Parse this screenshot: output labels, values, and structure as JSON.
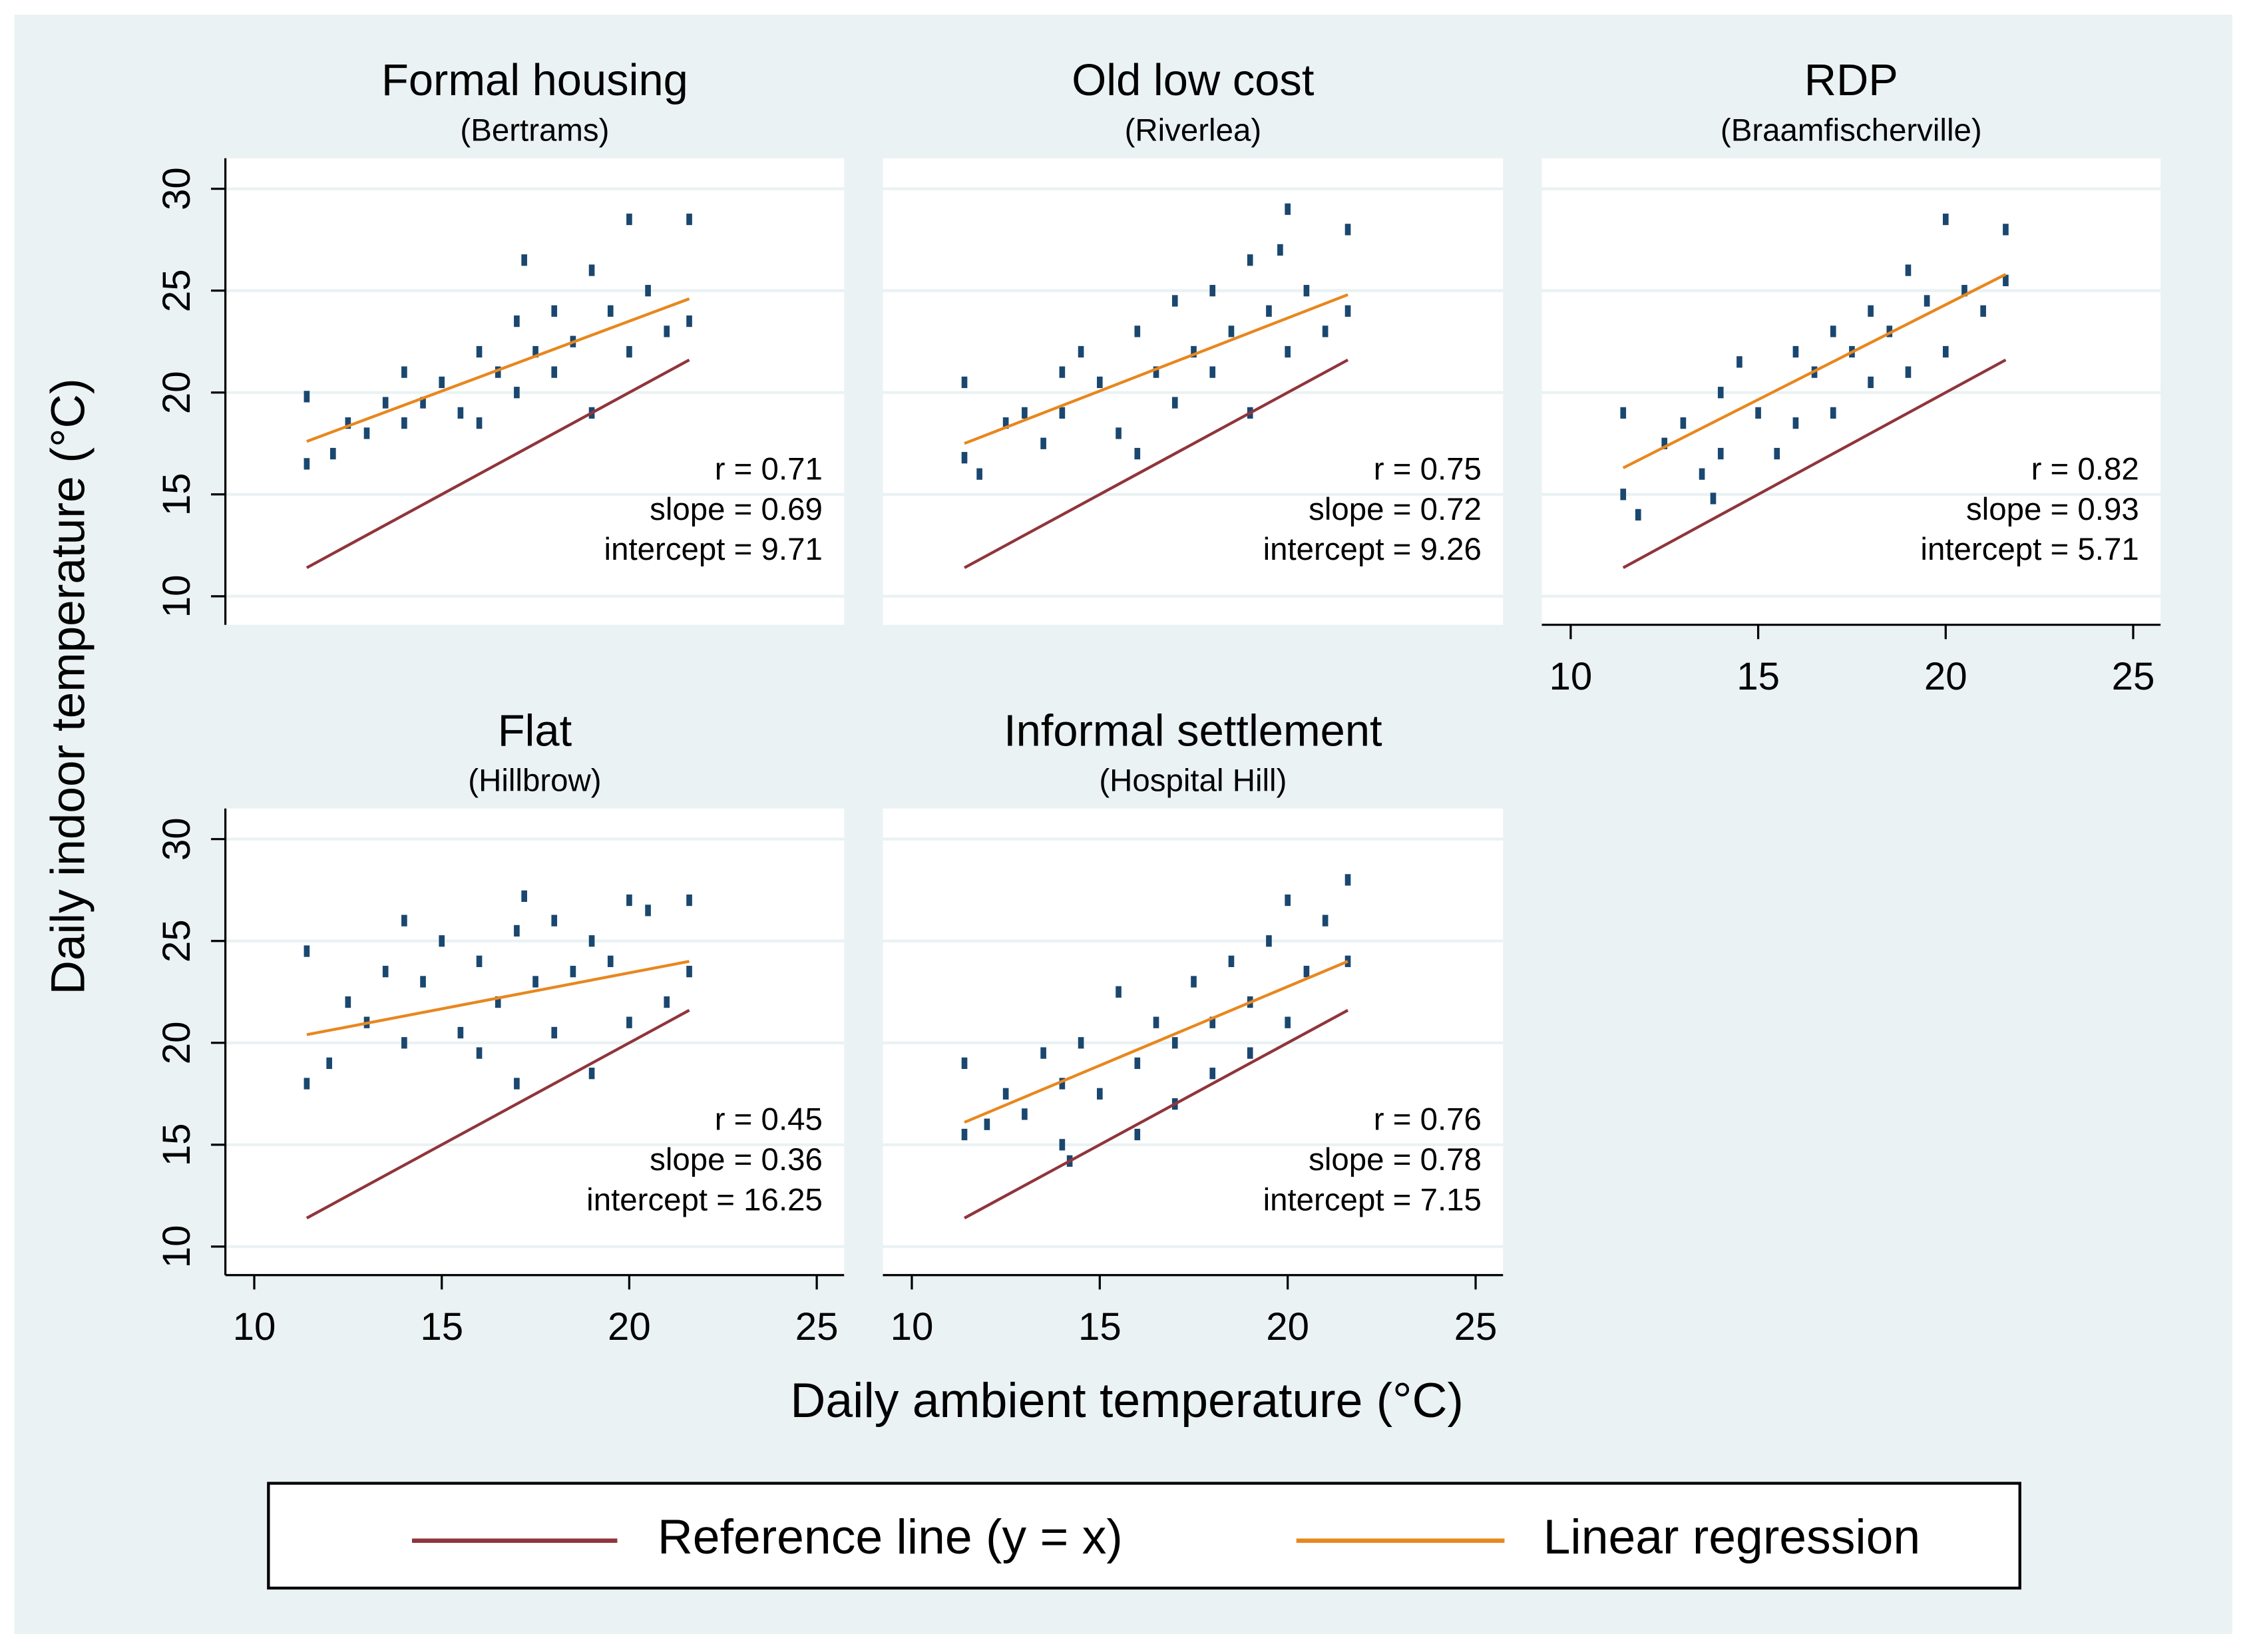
{
  "ylabel": "Daily indoor temperature (°C)",
  "xlabel": "Daily ambient temperature (°C)",
  "legend": [
    {
      "name": "Reference line (y = x)",
      "color": "#90353b"
    },
    {
      "name": "Linear regression",
      "color": "#e8871e"
    }
  ],
  "chart_data": [
    {
      "type": "scatter",
      "title": "Formal housing",
      "subtitle": "(Bertrams)",
      "color": "#1a476f",
      "xlim": [
        9.23,
        25.73
      ],
      "ylim": [
        8.6,
        31.5
      ],
      "yticks": [
        10,
        15,
        20,
        25,
        30
      ],
      "grid": true,
      "points": {
        "x": [
          11.4,
          11.4,
          12.1,
          12.5,
          13,
          13.5,
          14,
          14,
          14.5,
          15,
          15.5,
          16,
          16,
          16.5,
          17,
          17,
          17.5,
          18,
          18,
          18.5,
          19,
          19,
          19.5,
          20,
          20,
          20.5,
          21,
          21.6,
          21.6,
          17.2
        ],
        "y": [
          16.5,
          19.8,
          17,
          18.5,
          18,
          19.5,
          21,
          18.5,
          19.5,
          20.5,
          19,
          22,
          18.5,
          21,
          23.5,
          20,
          22,
          24,
          21,
          22.5,
          26,
          19,
          24,
          28.5,
          22,
          25,
          23,
          28.5,
          23.5,
          26.5
        ]
      },
      "reference": {
        "x": [
          11.4,
          21.6
        ],
        "y": [
          11.4,
          21.6
        ]
      },
      "regression": {
        "x": [
          11.4,
          21.6
        ],
        "y": [
          17.6,
          24.6
        ]
      },
      "annotations": [
        "r = 0.71",
        "slope = 0.69",
        "intercept = 9.71"
      ]
    },
    {
      "type": "scatter",
      "title": "Old low cost",
      "subtitle": "(Riverlea)",
      "color": "#1a476f",
      "xlim": [
        9.23,
        25.73
      ],
      "ylim": [
        8.6,
        31.5
      ],
      "grid": true,
      "points": {
        "x": [
          11.4,
          11.4,
          11.8,
          12.5,
          13,
          13.5,
          14,
          14,
          14.5,
          15,
          15.5,
          16,
          16,
          16.5,
          17,
          17,
          17.5,
          18,
          18,
          18.5,
          19,
          19,
          19.5,
          20,
          20,
          20.5,
          21,
          21.6,
          21.6,
          19.8
        ],
        "y": [
          16.8,
          20.5,
          16,
          18.5,
          19,
          17.5,
          21,
          19,
          22,
          20.5,
          18,
          23,
          17,
          21,
          24.5,
          19.5,
          22,
          25,
          21,
          23,
          26.5,
          19,
          24,
          29,
          22,
          25,
          23,
          28,
          24,
          27
        ]
      },
      "reference": {
        "x": [
          11.4,
          21.6
        ],
        "y": [
          11.4,
          21.6
        ]
      },
      "regression": {
        "x": [
          11.4,
          21.6
        ],
        "y": [
          17.5,
          24.8
        ]
      },
      "annotations": [
        "r = 0.75",
        "slope = 0.72",
        "intercept = 9.26"
      ]
    },
    {
      "type": "scatter",
      "title": "RDP",
      "subtitle": "(Braamfischerville)",
      "color": "#1a476f",
      "xlim": [
        9.23,
        25.73
      ],
      "ylim": [
        8.6,
        31.5
      ],
      "xticks": [
        10,
        15,
        20,
        25
      ],
      "grid": true,
      "points": {
        "x": [
          11.4,
          11.4,
          11.8,
          12.5,
          13,
          13.5,
          14,
          14,
          14.5,
          15,
          15.5,
          16,
          16,
          16.5,
          17,
          17,
          17.5,
          18,
          18,
          18.5,
          19,
          19,
          19.5,
          20,
          20,
          20.5,
          21,
          21.6,
          21.6,
          13.8
        ],
        "y": [
          15,
          19,
          14,
          17.5,
          18.5,
          16,
          20,
          17,
          21.5,
          19,
          17,
          22,
          18.5,
          21,
          23,
          19,
          22,
          24,
          20.5,
          23,
          26,
          21,
          24.5,
          28.5,
          22,
          25,
          24,
          28,
          25.5,
          14.8
        ]
      },
      "reference": {
        "x": [
          11.4,
          21.6
        ],
        "y": [
          11.4,
          21.6
        ]
      },
      "regression": {
        "x": [
          11.4,
          21.6
        ],
        "y": [
          16.3,
          25.8
        ]
      },
      "annotations": [
        "r = 0.82",
        "slope = 0.93",
        "intercept = 5.71"
      ]
    },
    {
      "type": "scatter",
      "title": "Flat",
      "subtitle": "(Hillbrow)",
      "color": "#1a476f",
      "xlim": [
        9.23,
        25.73
      ],
      "ylim": [
        8.6,
        31.5
      ],
      "xticks": [
        10,
        15,
        20,
        25
      ],
      "yticks": [
        10,
        15,
        20,
        25,
        30
      ],
      "grid": true,
      "points": {
        "x": [
          11.4,
          11.4,
          12,
          12.5,
          13,
          13.5,
          14,
          14,
          14.5,
          15,
          15.5,
          16,
          16,
          16.5,
          17,
          17,
          17.5,
          18,
          18,
          18.5,
          19,
          19,
          19.5,
          20,
          20,
          20.5,
          21,
          21.6,
          21.6,
          17.2
        ],
        "y": [
          18,
          24.5,
          19,
          22,
          21,
          23.5,
          26,
          20,
          23,
          25,
          20.5,
          24,
          19.5,
          22,
          25.5,
          18,
          23,
          26,
          20.5,
          23.5,
          25,
          18.5,
          24,
          27,
          21,
          26.5,
          22,
          27,
          23.5,
          27.2
        ]
      },
      "reference": {
        "x": [
          11.4,
          21.6
        ],
        "y": [
          11.4,
          21.6
        ]
      },
      "regression": {
        "x": [
          11.4,
          21.6
        ],
        "y": [
          20.4,
          24.0
        ]
      },
      "annotations": [
        "r = 0.45",
        "slope = 0.36",
        "intercept = 16.25"
      ]
    },
    {
      "type": "scatter",
      "title": "Informal settlement",
      "subtitle": "(Hospital Hill)",
      "color": "#1a476f",
      "xlim": [
        9.23,
        25.73
      ],
      "ylim": [
        8.6,
        31.5
      ],
      "xticks": [
        10,
        15,
        20,
        25
      ],
      "grid": true,
      "points": {
        "x": [
          11.4,
          11.4,
          12,
          12.5,
          13,
          13.5,
          14,
          14,
          14.5,
          15,
          15.5,
          16,
          16,
          16.5,
          17,
          17,
          17.5,
          18,
          18,
          18.5,
          19,
          19,
          19.5,
          20,
          20,
          20.5,
          21,
          21.6,
          21.6,
          14.2
        ],
        "y": [
          15.5,
          19,
          16,
          17.5,
          16.5,
          19.5,
          18,
          15,
          20,
          17.5,
          22.5,
          19,
          15.5,
          21,
          20,
          17,
          23,
          21,
          18.5,
          24,
          22,
          19.5,
          25,
          27,
          21,
          23.5,
          26,
          28,
          24,
          14.2
        ]
      },
      "reference": {
        "x": [
          11.4,
          21.6
        ],
        "y": [
          11.4,
          21.6
        ]
      },
      "regression": {
        "x": [
          11.4,
          21.6
        ],
        "y": [
          16.1,
          24.0
        ]
      },
      "annotations": [
        "r = 0.76",
        "slope = 0.78",
        "intercept = 7.15"
      ]
    }
  ]
}
